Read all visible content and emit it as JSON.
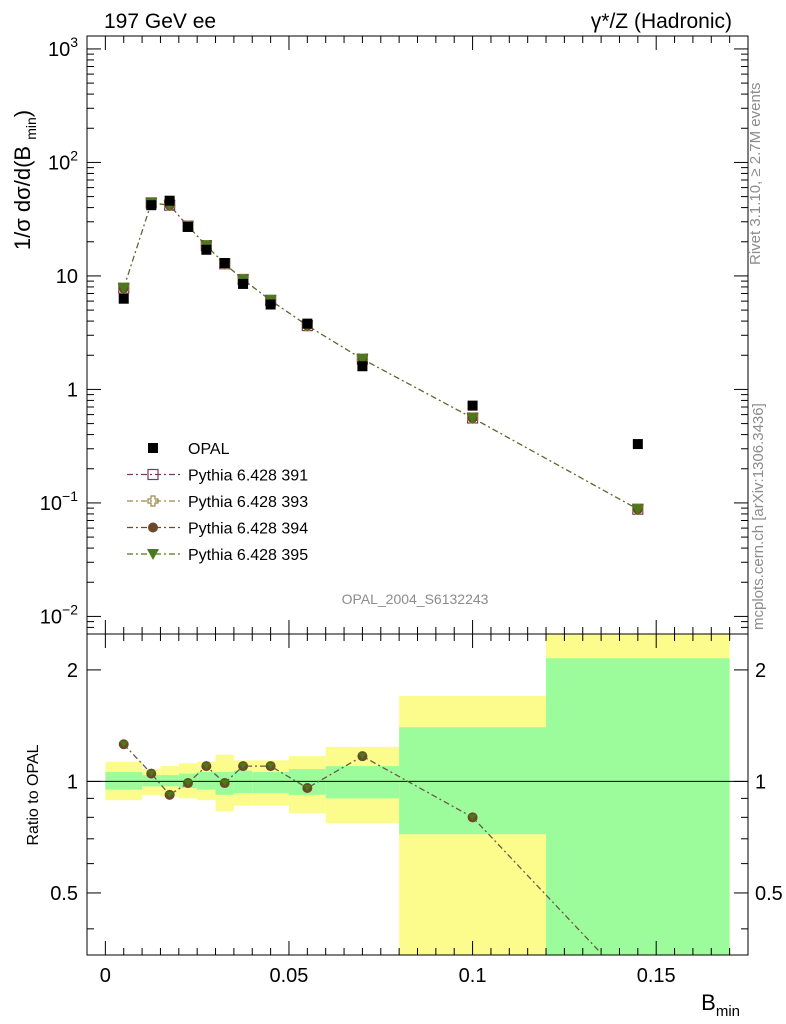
{
  "header": {
    "left_title": "197 GeV ee",
    "right_title": "γ*/Z (Hadronic)"
  },
  "side_labels": {
    "rivet": "Rivet 3.1.10, ≥ 2.7M events",
    "mcplots": "mcplots.cern.ch [arXiv:1306.3436]"
  },
  "analysis_id": "OPAL_2004_S6132243",
  "chart_data": [
    {
      "type": "scatter",
      "title": "197 GeV ee",
      "ylabel": "1/σ dσ/d(B_min)",
      "xlabel": "B_min",
      "yscale": "log",
      "xlim": [
        -0.005,
        0.175
      ],
      "ylim": [
        0.007,
        1300
      ],
      "y_ticks": [
        {
          "v": 0.01,
          "base": "10",
          "exp": "−2"
        },
        {
          "v": 0.1,
          "base": "10",
          "exp": "−1"
        },
        {
          "v": 1,
          "base": "1",
          "exp": ""
        },
        {
          "v": 10,
          "base": "10",
          "exp": ""
        },
        {
          "v": 100,
          "base": "10",
          "exp": "2"
        },
        {
          "v": 1000,
          "base": "10",
          "exp": "3"
        }
      ],
      "legend_position": "bottom-left",
      "series": [
        {
          "name": "OPAL",
          "marker": "square-filled",
          "color": "#000000",
          "x": [
            0.005,
            0.0125,
            0.0175,
            0.0225,
            0.0275,
            0.0325,
            0.0375,
            0.045,
            0.055,
            0.07,
            0.1,
            0.145
          ],
          "y": [
            6.3,
            42,
            46,
            27,
            17,
            13,
            8.5,
            5.6,
            3.8,
            1.6,
            0.72,
            0.33
          ]
        },
        {
          "name": "Pythia 6.428 391",
          "marker": "square-open",
          "color": "#7b3b5b",
          "x": [
            0.005,
            0.0125,
            0.0175,
            0.0225,
            0.0275,
            0.0325,
            0.0375,
            0.045,
            0.055,
            0.07,
            0.1,
            0.145
          ],
          "y": [
            7.8,
            44,
            42,
            27.5,
            18.5,
            12.8,
            9.3,
            6.1,
            3.65,
            1.85,
            0.56,
            0.088
          ]
        },
        {
          "name": "Pythia 6.428 393",
          "marker": "cross-open",
          "color": "#9a8a4a",
          "x": [
            0.005,
            0.0125,
            0.0175,
            0.0225,
            0.0275,
            0.0325,
            0.0375,
            0.045,
            0.055,
            0.07,
            0.1,
            0.145
          ],
          "y": [
            7.8,
            44,
            42,
            27.5,
            18.5,
            12.8,
            9.3,
            6.1,
            3.65,
            1.85,
            0.56,
            0.088
          ]
        },
        {
          "name": "Pythia 6.428 394",
          "marker": "circle-filled",
          "color": "#6b4a2a",
          "x": [
            0.005,
            0.0125,
            0.0175,
            0.0225,
            0.0275,
            0.0325,
            0.0375,
            0.045,
            0.055,
            0.07,
            0.1,
            0.145
          ],
          "y": [
            7.8,
            44,
            42,
            27.5,
            18.5,
            12.8,
            9.3,
            6.1,
            3.65,
            1.85,
            0.56,
            0.088
          ]
        },
        {
          "name": "Pythia 6.428 395",
          "marker": "triangle-down-filled",
          "color": "#4a7a1a",
          "x": [
            0.005,
            0.0125,
            0.0175,
            0.0225,
            0.0275,
            0.0325,
            0.0375,
            0.045,
            0.055,
            0.07,
            0.1,
            0.145
          ],
          "y": [
            7.8,
            44,
            42,
            27.5,
            18.5,
            12.8,
            9.3,
            6.1,
            3.65,
            1.85,
            0.56,
            0.088
          ]
        }
      ]
    },
    {
      "type": "line",
      "ylabel": "Ratio to OPAL",
      "xlabel": "B_min",
      "yscale": "log",
      "xlim": [
        -0.005,
        0.175
      ],
      "ylim": [
        0.34,
        2.5
      ],
      "x_ticks": [
        0,
        0.05,
        0.1,
        0.15
      ],
      "x_tick_labels": [
        "0",
        "0.05",
        "0.1",
        "0.15"
      ],
      "y_tick_labels": [
        {
          "v": 0.5,
          "t": "0.5"
        },
        {
          "v": 1,
          "t": "1"
        },
        {
          "v": 2,
          "t": "2"
        }
      ],
      "bands": [
        {
          "x0": 0,
          "x1": 0.01,
          "stat": [
            0.95,
            1.06
          ],
          "total": [
            0.89,
            1.13
          ]
        },
        {
          "x0": 0.01,
          "x1": 0.015,
          "stat": [
            0.97,
            1.04
          ],
          "total": [
            0.92,
            1.08
          ]
        },
        {
          "x0": 0.015,
          "x1": 0.02,
          "stat": [
            0.97,
            1.04
          ],
          "total": [
            0.91,
            1.1
          ]
        },
        {
          "x0": 0.02,
          "x1": 0.025,
          "stat": [
            0.96,
            1.05
          ],
          "total": [
            0.9,
            1.12
          ]
        },
        {
          "x0": 0.025,
          "x1": 0.03,
          "stat": [
            0.95,
            1.06
          ],
          "total": [
            0.89,
            1.13
          ]
        },
        {
          "x0": 0.03,
          "x1": 0.035,
          "stat": [
            0.92,
            1.06
          ],
          "total": [
            0.83,
            1.18
          ]
        },
        {
          "x0": 0.035,
          "x1": 0.04,
          "stat": [
            0.93,
            1.07
          ],
          "total": [
            0.86,
            1.14
          ]
        },
        {
          "x0": 0.04,
          "x1": 0.05,
          "stat": [
            0.93,
            1.06
          ],
          "total": [
            0.86,
            1.14
          ]
        },
        {
          "x0": 0.05,
          "x1": 0.06,
          "stat": [
            0.92,
            1.08
          ],
          "total": [
            0.82,
            1.17
          ]
        },
        {
          "x0": 0.06,
          "x1": 0.08,
          "stat": [
            0.9,
            1.1
          ],
          "total": [
            0.77,
            1.24
          ]
        },
        {
          "x0": 0.08,
          "x1": 0.12,
          "stat": [
            0.72,
            1.4
          ],
          "total": [
            0.1,
            1.7
          ]
        },
        {
          "x0": 0.12,
          "x1": 0.17,
          "stat": [
            0.1,
            2.15
          ],
          "total": [
            0.1,
            2.5
          ]
        }
      ],
      "band_colors": {
        "stat": "#9cfc9c",
        "total": "#fcfc8c"
      },
      "series": [
        {
          "name": "Pythia 6.428 391",
          "color": "#7b3b5b",
          "x": [
            0.005,
            0.0125,
            0.0175,
            0.0225,
            0.0275,
            0.0325,
            0.0375,
            0.045,
            0.055,
            0.07,
            0.1,
            0.145
          ],
          "y": [
            1.26,
            1.05,
            0.92,
            0.99,
            1.1,
            0.99,
            1.1,
            1.1,
            0.96,
            1.17,
            0.8,
            0.27
          ]
        }
      ]
    }
  ]
}
